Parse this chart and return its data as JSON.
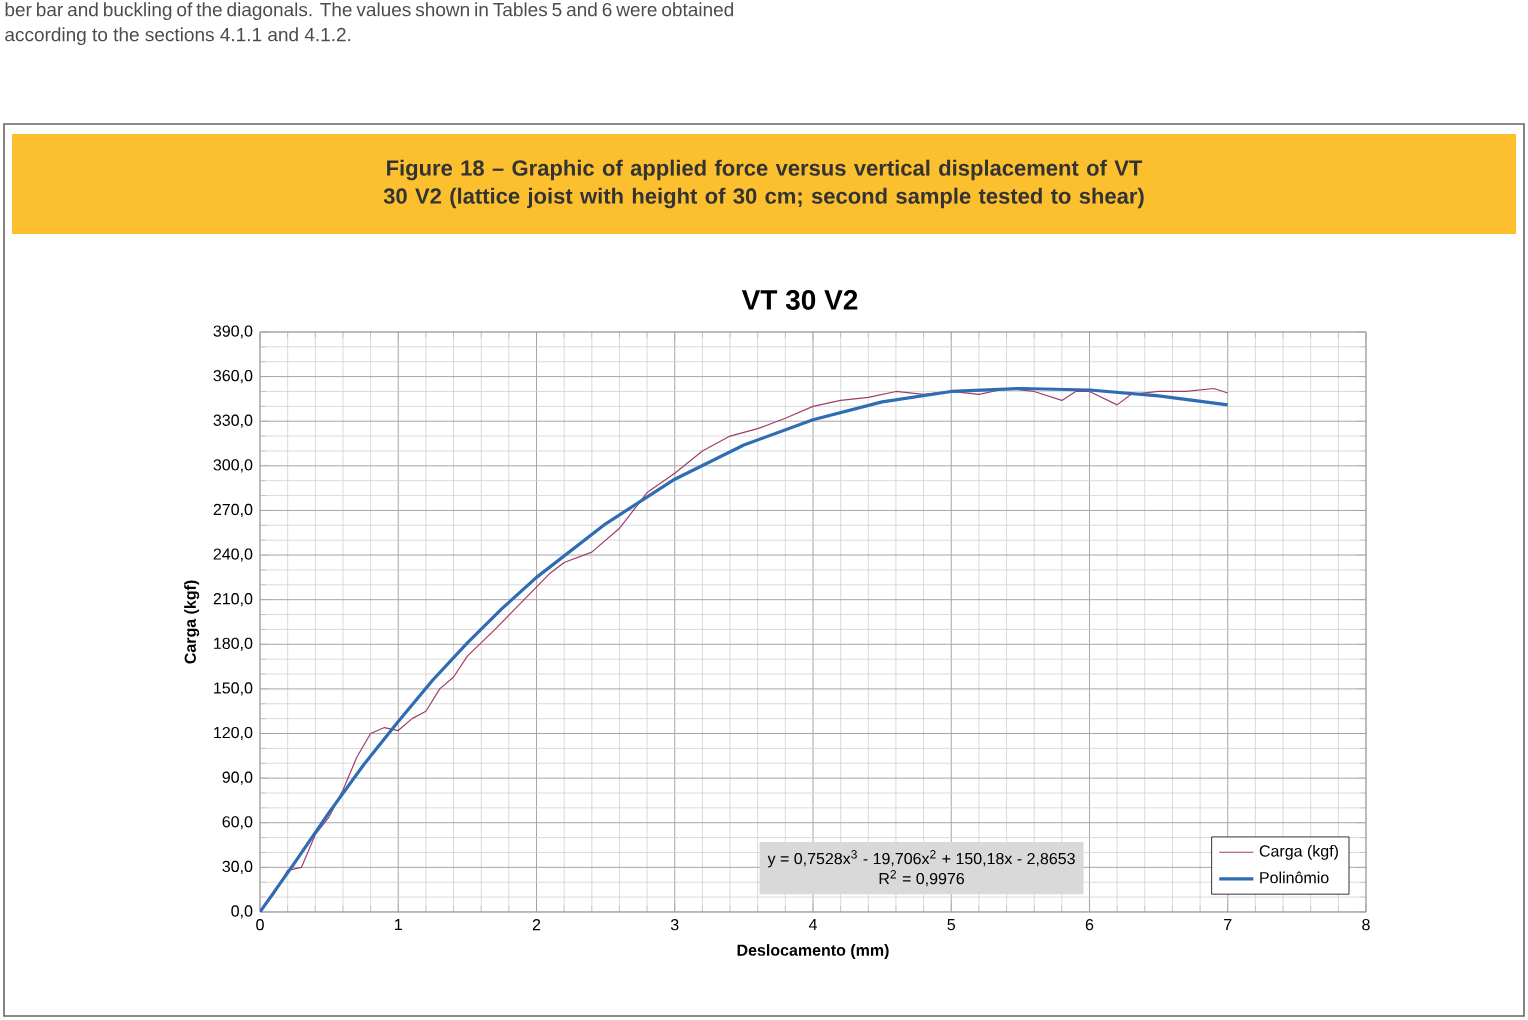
{
  "chart_data": {
    "type": "line",
    "title": "Figure 18 – Graphic of applied force versus vertical displacement of VT 30 V2 (lattice joist with height of 30 cm; second sample tested to shear)",
    "subtitle": "VT 30 V2",
    "xlabel": "Deslocamento (mm)",
    "ylabel": "Carga (kgf)",
    "xlim": [
      0,
      8
    ],
    "ylim": [
      0,
      390
    ],
    "xticks": [
      0,
      1,
      2,
      3,
      4,
      5,
      6,
      7,
      8
    ],
    "yticks": [
      {
        "value": 0,
        "label": "0,0"
      },
      {
        "value": 30,
        "label": "30,0"
      },
      {
        "value": 60,
        "label": "60,0"
      },
      {
        "value": 90,
        "label": "90,0"
      },
      {
        "value": 120,
        "label": "120,0"
      },
      {
        "value": 150,
        "label": "150,0"
      },
      {
        "value": 180,
        "label": "180,0"
      },
      {
        "value": 210,
        "label": "210,0"
      },
      {
        "value": 240,
        "label": "240,0"
      },
      {
        "value": 270,
        "label": "270,0"
      },
      {
        "value": 300,
        "label": "300,0"
      },
      {
        "value": 330,
        "label": "330,0"
      },
      {
        "value": 360,
        "label": "360,0"
      },
      {
        "value": 390,
        "label": "390,0"
      }
    ],
    "grid": true,
    "legend": "bottom right",
    "marker": "none",
    "series": [
      {
        "name": "Carga (kgf)",
        "color": "#a03c6c",
        "x": [
          0,
          0.1,
          0.2,
          0.3,
          0.4,
          0.5,
          0.6,
          0.7,
          0.8,
          0.9,
          1.0,
          1.1,
          1.2,
          1.3,
          1.4,
          1.5,
          1.7,
          1.9,
          2.1,
          2.2,
          2.4,
          2.6,
          2.8,
          3.0,
          3.2,
          3.4,
          3.6,
          3.8,
          4.0,
          4.2,
          4.4,
          4.6,
          4.8,
          5.0,
          5.2,
          5.4,
          5.6,
          5.8,
          5.9,
          6.0,
          6.2,
          6.3,
          6.5,
          6.7,
          6.9,
          7.0
        ],
        "values": [
          0,
          12,
          28,
          30,
          52,
          64,
          82,
          104,
          120,
          124,
          122,
          130,
          135,
          150,
          158,
          172,
          190,
          209,
          228,
          235,
          242,
          258,
          282,
          295,
          310,
          320,
          325,
          332,
          340,
          344,
          346,
          350,
          348,
          350,
          348,
          352,
          350,
          344,
          350,
          350,
          341,
          348,
          350,
          350,
          352,
          349
        ]
      },
      {
        "name": "Polinômio",
        "color": "#2e6db4",
        "x": [
          0,
          0.25,
          0.5,
          0.75,
          1.0,
          1.25,
          1.5,
          1.75,
          2.0,
          2.5,
          3.0,
          3.5,
          4.0,
          4.5,
          5.0,
          5.5,
          6.0,
          6.5,
          7.0
        ],
        "values": [
          0,
          33,
          67,
          99,
          128,
          156,
          181,
          204,
          225,
          261,
          291,
          314,
          331,
          343,
          350,
          352,
          351,
          347,
          341
        ]
      }
    ],
    "annotations": [
      "ber bar and buckling of the diagonals. The values shown in Tables 5 and 6 were obtained according to the sections 4.1.1 and 4.1.2.",
      "y = 0,7528x$^{3}$ - 19,706x$^{2}$ + 150,18x - 2,8653",
      "R$^{2}$ = 0,9976"
    ]
  }
}
